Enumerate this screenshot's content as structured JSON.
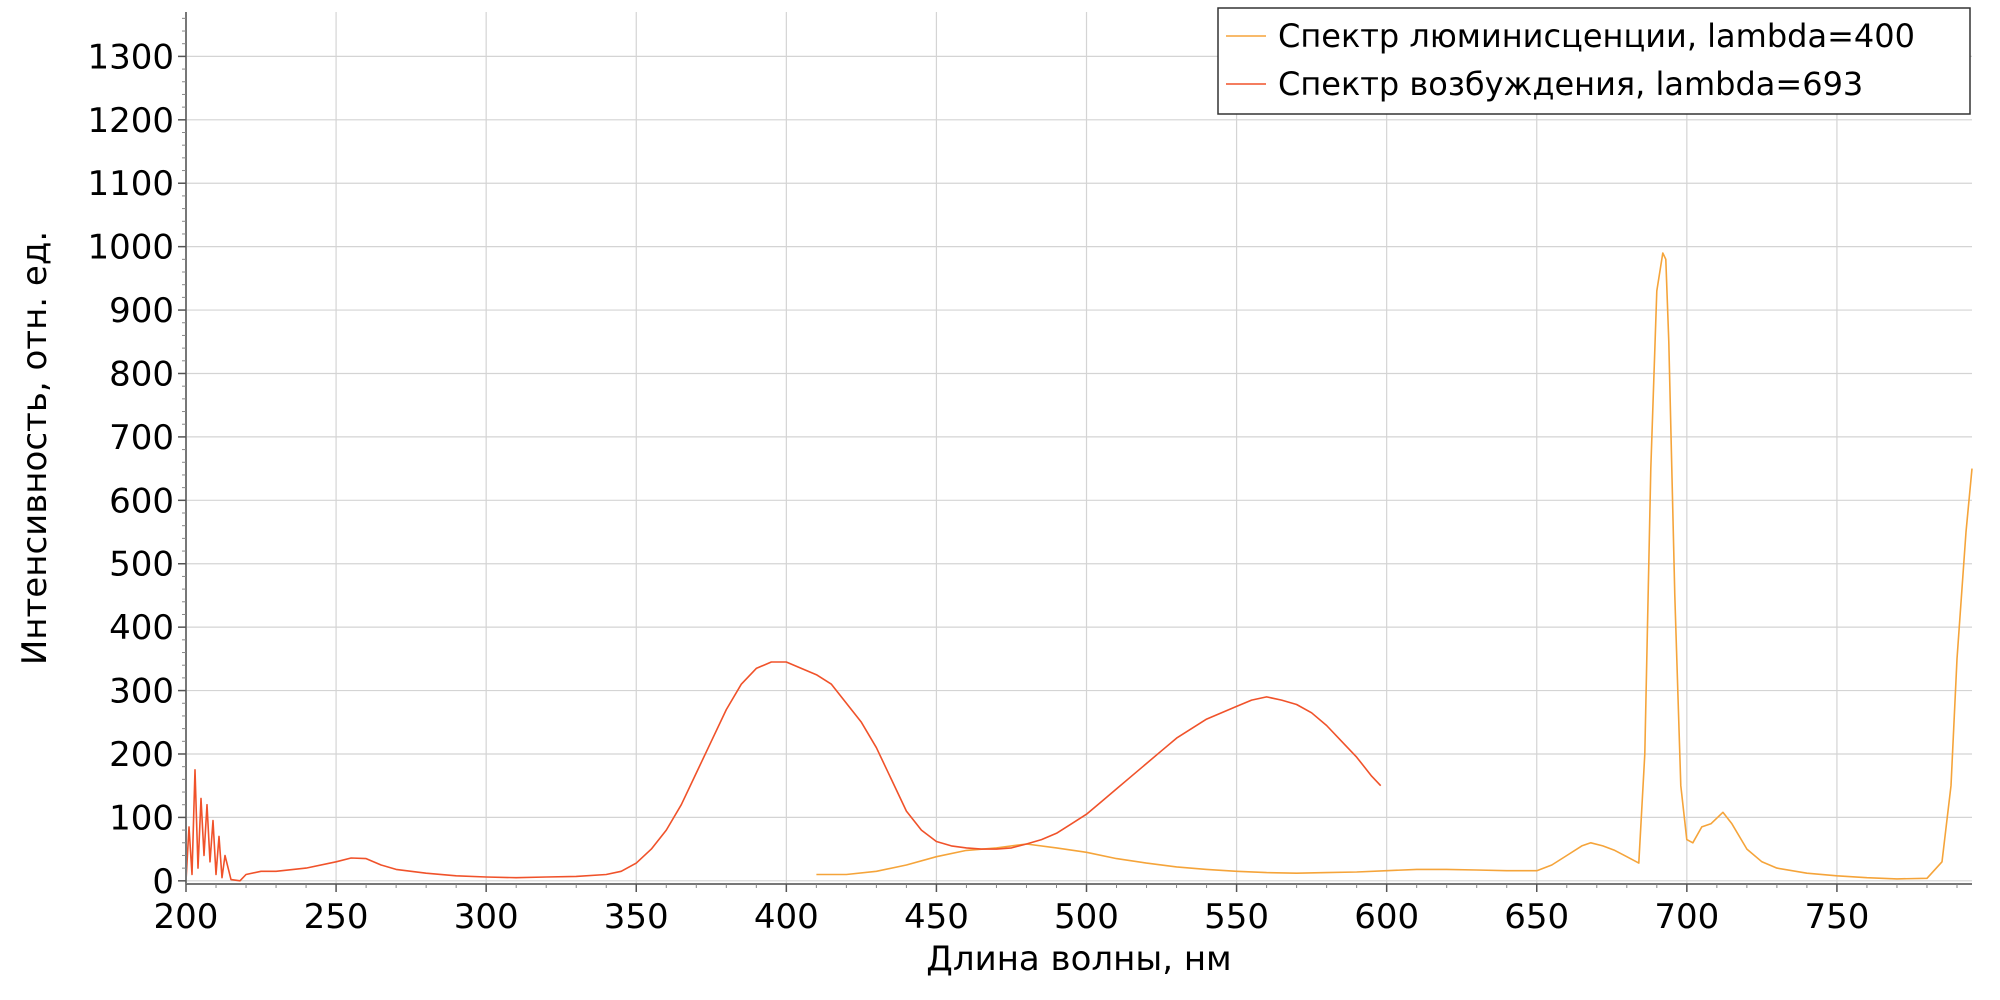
{
  "chart_data": {
    "type": "line",
    "title": "",
    "xlabel": "Длина волны, нм",
    "ylabel": "Интенсивность, отн. ед.",
    "xlim": [
      200,
      795
    ],
    "ylim": [
      -5,
      1370
    ],
    "x_ticks": [
      "200",
      "250",
      "300",
      "350",
      "400",
      "450",
      "500",
      "550",
      "600",
      "650",
      "700",
      "750"
    ],
    "y_ticks": [
      "0",
      "100",
      "200",
      "300",
      "400",
      "500",
      "600",
      "700",
      "800",
      "900",
      "1000",
      "1100",
      "1200",
      "1300"
    ],
    "grid": true,
    "legend_position": "top-right",
    "series": [
      {
        "name": "Спектр люминисценции, lambda=400",
        "color": "#f5a43a",
        "x": [
          410,
          420,
          430,
          440,
          450,
          460,
          470,
          480,
          490,
          500,
          510,
          520,
          530,
          540,
          550,
          560,
          570,
          580,
          590,
          600,
          610,
          620,
          630,
          640,
          650,
          655,
          660,
          665,
          668,
          672,
          676,
          680,
          684,
          686,
          688,
          690,
          692,
          693,
          694,
          696,
          698,
          700,
          702,
          705,
          708,
          712,
          715,
          720,
          725,
          730,
          740,
          750,
          760,
          770,
          780,
          785,
          788,
          790,
          793,
          795
        ],
        "y": [
          10,
          10,
          15,
          25,
          38,
          48,
          52,
          58,
          52,
          45,
          35,
          28,
          22,
          18,
          15,
          13,
          12,
          13,
          14,
          16,
          18,
          18,
          17,
          16,
          16,
          25,
          40,
          55,
          60,
          55,
          48,
          38,
          28,
          200,
          650,
          930,
          990,
          980,
          850,
          450,
          150,
          65,
          60,
          85,
          90,
          108,
          90,
          50,
          30,
          20,
          12,
          8,
          5,
          3,
          4,
          30,
          150,
          350,
          550,
          650
        ]
      },
      {
        "name": "Спектр возбуждения, lambda=693",
        "color": "#f0522a",
        "x": [
          200,
          201,
          202,
          203,
          204,
          205,
          206,
          207,
          208,
          209,
          210,
          211,
          212,
          213,
          215,
          218,
          220,
          225,
          230,
          240,
          250,
          255,
          260,
          265,
          270,
          280,
          290,
          300,
          310,
          320,
          330,
          340,
          345,
          350,
          355,
          360,
          365,
          370,
          375,
          380,
          385,
          390,
          395,
          400,
          405,
          410,
          415,
          420,
          425,
          430,
          435,
          440,
          445,
          450,
          455,
          460,
          465,
          470,
          475,
          480,
          485,
          490,
          495,
          500,
          505,
          510,
          515,
          520,
          525,
          530,
          535,
          540,
          545,
          550,
          555,
          560,
          565,
          570,
          575,
          580,
          585,
          590,
          595,
          598
        ],
        "y": [
          0,
          85,
          10,
          175,
          20,
          130,
          40,
          120,
          30,
          95,
          10,
          70,
          5,
          40,
          2,
          0,
          10,
          15,
          15,
          20,
          30,
          36,
          35,
          25,
          18,
          12,
          8,
          6,
          5,
          6,
          7,
          10,
          15,
          28,
          50,
          80,
          120,
          170,
          220,
          270,
          310,
          335,
          345,
          345,
          335,
          325,
          310,
          280,
          250,
          210,
          160,
          110,
          80,
          62,
          55,
          52,
          50,
          50,
          52,
          58,
          65,
          75,
          90,
          105,
          125,
          145,
          165,
          185,
          205,
          225,
          240,
          255,
          265,
          275,
          285,
          290,
          285,
          278,
          265,
          245,
          220,
          195,
          165,
          150
        ]
      }
    ]
  }
}
